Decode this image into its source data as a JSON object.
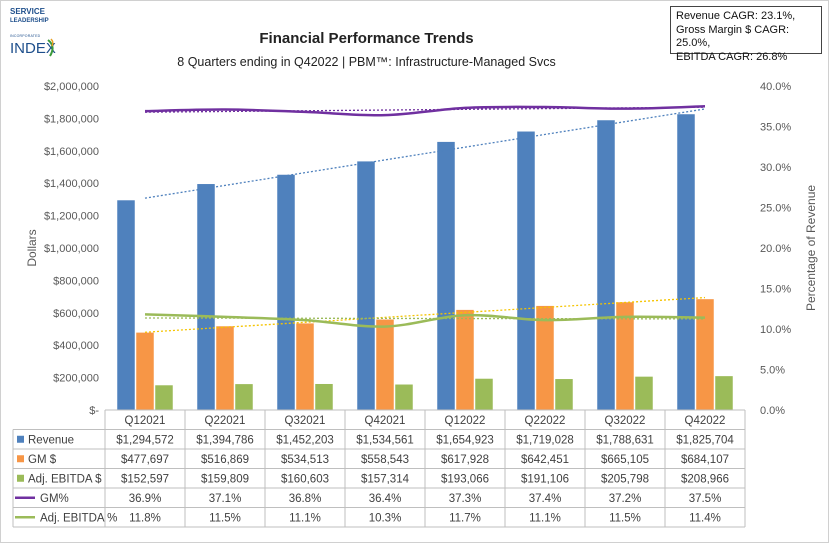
{
  "logo": {
    "line1": "SERVICE",
    "line2": "LEADERSHIP",
    "line3": "INCORPORATED",
    "line4": "INDEX"
  },
  "cagr_box": {
    "line1": "Revenue  CAGR: 23.1%,",
    "line2": "Gross Margin $ CAGR: 25.0%,",
    "line3": "EBITDA CAGR: 26.8%"
  },
  "chart_data": {
    "type": "bar",
    "title": "Financial Performance Trends",
    "subtitle": "8 Quarters ending in Q42022 | PBM™: Infrastructure-Managed Svcs",
    "ylabel": "Dollars",
    "y2label": "Percentage of Revenue",
    "ylim": [
      0,
      2000000
    ],
    "y2lim": [
      0,
      40
    ],
    "yticks": [
      "$-",
      "$200,000",
      "$400,000",
      "$600,000",
      "$800,000",
      "$1,000,000",
      "$1,200,000",
      "$1,400,000",
      "$1,600,000",
      "$1,800,000",
      "$2,000,000"
    ],
    "y2ticks": [
      "0.0%",
      "5.0%",
      "10.0%",
      "15.0%",
      "20.0%",
      "25.0%",
      "30.0%",
      "35.0%",
      "40.0%"
    ],
    "categories": [
      "Q12021",
      "Q22021",
      "Q32021",
      "Q42021",
      "Q12022",
      "Q22022",
      "Q32022",
      "Q42022"
    ],
    "bar_series": [
      {
        "name": "Revenue",
        "color": "#4f81bd",
        "values": [
          1294572,
          1394786,
          1452203,
          1534561,
          1654923,
          1719028,
          1788631,
          1825704
        ],
        "labels": [
          "$1,294,572",
          "$1,394,786",
          "$1,452,203",
          "$1,534,561",
          "$1,654,923",
          "$1,719,028",
          "$1,788,631",
          "$1,825,704"
        ]
      },
      {
        "name": "GM $",
        "color": "#f79646",
        "values": [
          477697,
          516869,
          534513,
          558543,
          617928,
          642451,
          665105,
          684107
        ],
        "labels": [
          "$477,697",
          "$516,869",
          "$534,513",
          "$558,543",
          "$617,928",
          "$642,451",
          "$665,105",
          "$684,107"
        ]
      },
      {
        "name": "Adj. EBITDA $",
        "color": "#9bbb59",
        "values": [
          152597,
          159809,
          160603,
          157314,
          193066,
          191106,
          205798,
          208966
        ],
        "labels": [
          "$152,597",
          "$159,809",
          "$160,603",
          "$157,314",
          "$193,066",
          "$191,106",
          "$205,798",
          "$208,966"
        ]
      }
    ],
    "line_series": [
      {
        "name": "GM%",
        "color": "#7030a0",
        "values": [
          36.9,
          37.1,
          36.8,
          36.4,
          37.3,
          37.4,
          37.2,
          37.5
        ],
        "labels": [
          "36.9%",
          "37.1%",
          "36.8%",
          "36.4%",
          "37.3%",
          "37.4%",
          "37.2%",
          "37.5%"
        ]
      },
      {
        "name": "Adj. EBITDA %",
        "color": "#9bbb59",
        "values": [
          11.8,
          11.5,
          11.1,
          10.3,
          11.7,
          11.1,
          11.5,
          11.4
        ],
        "labels": [
          "11.8%",
          "11.5%",
          "11.1%",
          "10.3%",
          "11.7%",
          "11.1%",
          "11.5%",
          "11.4%"
        ]
      }
    ],
    "trendlines": [
      {
        "series": "Revenue",
        "color": "#4f81bd",
        "style": "dotted"
      },
      {
        "series": "GM $",
        "color": "#f5c400",
        "style": "dotted"
      },
      {
        "series": "GM%",
        "color": "#7030a0",
        "style": "dotted"
      },
      {
        "series": "Adj. EBITDA %",
        "color": "#9bbb59",
        "style": "dotted"
      }
    ],
    "data_table": true,
    "grid": false,
    "legend": "data-table-left"
  }
}
